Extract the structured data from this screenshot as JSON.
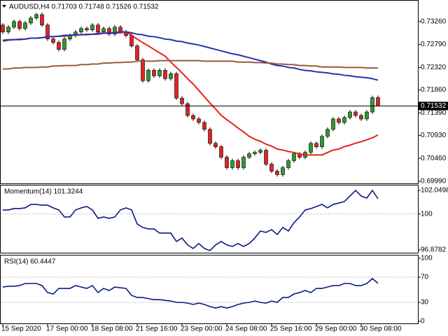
{
  "chart_data": [
    {
      "type": "candlestick",
      "title": "AUDUSD,H4 0.71703 0.71748 0.71526 0.71532",
      "categories": [
        "15 Sep 2020",
        null,
        null,
        null,
        null,
        null,
        null,
        null,
        "17 Sep 00:00",
        null,
        null,
        null,
        null,
        null,
        null,
        null,
        "18 Sep 08:00",
        null,
        null,
        null,
        null,
        null,
        null,
        null,
        "21 Sep 16:00",
        null,
        null,
        null,
        null,
        null,
        null,
        null,
        "23 Sep 00:00",
        null,
        null,
        null,
        null,
        null,
        null,
        null,
        "24 Sep 08:00",
        null,
        null,
        null,
        null,
        null,
        null,
        null,
        "25 Sep 16:00",
        null,
        null,
        null,
        null,
        null,
        null,
        null,
        "29 Sep 00:00",
        null,
        null,
        null,
        null,
        null,
        null,
        null,
        "30 Sep 08:00",
        null,
        null,
        null
      ],
      "open": [
        0.73189,
        0.73046,
        0.73146,
        0.7326,
        0.73117,
        0.73231,
        0.73331,
        0.73402,
        0.73189,
        0.72904,
        0.72833,
        0.7269,
        0.72904,
        0.72975,
        0.73046,
        0.73117,
        0.73089,
        0.73189,
        0.73046,
        0.73117,
        0.73004,
        0.73146,
        0.73046,
        0.72975,
        0.72761,
        0.72477,
        0.72049,
        0.72263,
        0.72149,
        0.72263,
        0.72092,
        0.72192,
        0.71693,
        0.71579,
        0.71337,
        0.71266,
        0.71195,
        0.71053,
        0.70767,
        0.70697,
        0.70483,
        0.70269,
        0.70412,
        0.70269,
        0.70483,
        0.70554,
        0.70583,
        0.70625,
        0.70341,
        0.70198,
        0.70127,
        0.70269,
        0.70412,
        0.70554,
        0.70483,
        0.70583,
        0.70767,
        0.70697,
        0.7091,
        0.71053,
        0.71266,
        0.71195,
        0.71295,
        0.71409,
        0.71337,
        0.71266,
        0.71409,
        0.71703
      ],
      "high": [
        0.73229,
        0.73186,
        0.733,
        0.733,
        0.73271,
        0.73371,
        0.73442,
        0.73442,
        0.73229,
        0.72944,
        0.72873,
        0.72944,
        0.73015,
        0.73086,
        0.73157,
        0.73157,
        0.73229,
        0.73229,
        0.73157,
        0.73157,
        0.73186,
        0.73186,
        0.73086,
        0.73015,
        0.72801,
        0.72517,
        0.72303,
        0.72303,
        0.72303,
        0.72303,
        0.72232,
        0.72232,
        0.71733,
        0.71619,
        0.71377,
        0.71306,
        0.71235,
        0.71093,
        0.70807,
        0.70737,
        0.70523,
        0.70452,
        0.70452,
        0.70523,
        0.70594,
        0.70623,
        0.70665,
        0.70665,
        0.70381,
        0.70238,
        0.70309,
        0.70452,
        0.70594,
        0.70594,
        0.70623,
        0.70807,
        0.70807,
        0.7095,
        0.71093,
        0.71306,
        0.71306,
        0.71335,
        0.71449,
        0.71449,
        0.71377,
        0.71449,
        0.71743,
        0.71748
      ],
      "low": [
        0.73006,
        0.73006,
        0.73106,
        0.73077,
        0.73077,
        0.73191,
        0.73291,
        0.73149,
        0.72864,
        0.72793,
        0.7265,
        0.7265,
        0.72864,
        0.72935,
        0.73006,
        0.73049,
        0.73049,
        0.73006,
        0.73006,
        0.72964,
        0.72964,
        0.73006,
        0.72935,
        0.72721,
        0.72437,
        0.72009,
        0.72009,
        0.72109,
        0.72109,
        0.72052,
        0.72052,
        0.71653,
        0.71539,
        0.71297,
        0.71226,
        0.71155,
        0.71013,
        0.70727,
        0.70657,
        0.70443,
        0.70229,
        0.70229,
        0.70229,
        0.70229,
        0.70443,
        0.70514,
        0.70543,
        0.70301,
        0.70158,
        0.70087,
        0.70087,
        0.70229,
        0.70372,
        0.70443,
        0.70443,
        0.70543,
        0.70657,
        0.70657,
        0.7087,
        0.71013,
        0.71155,
        0.71155,
        0.71255,
        0.71297,
        0.71226,
        0.71226,
        0.71369,
        0.71526
      ],
      "close": [
        0.73046,
        0.73146,
        0.7326,
        0.73117,
        0.73231,
        0.73331,
        0.73402,
        0.73189,
        0.72904,
        0.72833,
        0.7269,
        0.72904,
        0.72975,
        0.73046,
        0.73117,
        0.73089,
        0.73189,
        0.73046,
        0.73117,
        0.73004,
        0.73146,
        0.73046,
        0.72975,
        0.72761,
        0.72477,
        0.72049,
        0.72263,
        0.72149,
        0.72263,
        0.72092,
        0.72192,
        0.71693,
        0.71579,
        0.71337,
        0.71266,
        0.71195,
        0.71053,
        0.70767,
        0.70697,
        0.70483,
        0.70269,
        0.70412,
        0.70269,
        0.70483,
        0.70554,
        0.70583,
        0.70625,
        0.70341,
        0.70198,
        0.70127,
        0.70269,
        0.70412,
        0.70554,
        0.70483,
        0.70583,
        0.70767,
        0.70697,
        0.7091,
        0.71053,
        0.71266,
        0.71195,
        0.71295,
        0.71409,
        0.71337,
        0.71266,
        0.71409,
        0.71703,
        0.71532
      ],
      "up_color": "#2e9a2e",
      "down_color": "#e02424",
      "lines": [
        {
          "color": "#e8201c",
          "values": [
            0.7288,
            0.7289,
            0.7289,
            0.729,
            0.729,
            0.7292,
            0.7292,
            0.7293,
            0.7295,
            0.7295,
            0.7296,
            0.7296,
            0.7298,
            0.7298,
            0.7299,
            0.7299,
            0.73,
            0.73,
            0.7302,
            0.7302,
            0.7303,
            0.7303,
            0.7305,
            0.7298,
            0.729,
            0.7283,
            0.7276,
            0.7269,
            0.7262,
            0.7255,
            0.7243,
            0.7232,
            0.7221,
            0.7209,
            0.7198,
            0.7185,
            0.7172,
            0.7159,
            0.7147,
            0.7134,
            0.7125,
            0.7117,
            0.7108,
            0.71,
            0.7091,
            0.7085,
            0.7081,
            0.7075,
            0.7071,
            0.7065,
            0.7063,
            0.706,
            0.7058,
            0.7055,
            0.7053,
            0.7053,
            0.7053,
            0.7053,
            0.7058,
            0.7063,
            0.7065,
            0.707,
            0.7073,
            0.7077,
            0.708,
            0.7084,
            0.7088,
            0.7094
          ]
        },
        {
          "color": "#2434b0",
          "values": [
            0.7286,
            0.7288,
            0.7289,
            0.7289,
            0.729,
            0.7292,
            0.7292,
            0.7293,
            0.7295,
            0.7295,
            0.7296,
            0.7298,
            0.7298,
            0.7299,
            0.7299,
            0.73,
            0.73,
            0.7302,
            0.7302,
            0.7303,
            0.7303,
            0.7305,
            0.7305,
            0.7303,
            0.73,
            0.7299,
            0.7296,
            0.7295,
            0.7293,
            0.729,
            0.7289,
            0.7286,
            0.7285,
            0.7282,
            0.728,
            0.7278,
            0.7275,
            0.7272,
            0.7269,
            0.7266,
            0.7263,
            0.726,
            0.7258,
            0.7255,
            0.7252,
            0.7249,
            0.7246,
            0.7243,
            0.7239,
            0.7236,
            0.7235,
            0.7232,
            0.7231,
            0.7228,
            0.7226,
            0.7225,
            0.7223,
            0.7222,
            0.7221,
            0.7219,
            0.7218,
            0.7216,
            0.7215,
            0.7213,
            0.7212,
            0.7211,
            0.7209,
            0.7206
          ]
        },
        {
          "color": "#9b5b3c",
          "values": [
            0.7229,
            0.7229,
            0.7231,
            0.7231,
            0.7232,
            0.7232,
            0.7232,
            0.7233,
            0.7233,
            0.7235,
            0.7235,
            0.7236,
            0.7236,
            0.7236,
            0.7238,
            0.7238,
            0.7239,
            0.7239,
            0.7241,
            0.7241,
            0.7242,
            0.7242,
            0.7243,
            0.7243,
            0.7245,
            0.7245,
            0.7245,
            0.7245,
            0.7246,
            0.7246,
            0.7246,
            0.7246,
            0.7246,
            0.7246,
            0.7246,
            0.7246,
            0.7245,
            0.7245,
            0.7245,
            0.7245,
            0.7245,
            0.7245,
            0.7243,
            0.7243,
            0.7243,
            0.7242,
            0.7242,
            0.7241,
            0.7241,
            0.7239,
            0.7239,
            0.7238,
            0.7238,
            0.7236,
            0.7236,
            0.7235,
            0.7235,
            0.7233,
            0.7233,
            0.7233,
            0.7233,
            0.7232,
            0.7232,
            0.7232,
            0.7232,
            0.7231,
            0.7231,
            0.7231
          ]
        }
      ],
      "ylim": [
        0.69947,
        0.73687
      ],
      "yticks": [
        {
          "value": 0.7326,
          "label": "0.73260"
        },
        {
          "value": 0.7279,
          "label": "0.72790"
        },
        {
          "value": 0.7232,
          "label": "0.72320"
        },
        {
          "value": 0.7186,
          "label": "0.71860"
        },
        {
          "value": 0.7139,
          "label": "0.71390"
        },
        {
          "value": 0.7093,
          "label": "0.70930"
        },
        {
          "value": 0.7046,
          "label": "0.70460"
        },
        {
          "value": 0.6999,
          "label": "0.69990"
        }
      ],
      "last_price": 0.71532
    },
    {
      "type": "line",
      "title": "Momentum(14) 101.3244",
      "color": "#0a1a80",
      "values": [
        100.35,
        100.35,
        100.47,
        100.47,
        100.53,
        100.83,
        100.83,
        100.77,
        100.77,
        100.53,
        100.35,
        99.74,
        99.74,
        100.35,
        100.53,
        100.65,
        100.35,
        99.62,
        99.74,
        99.62,
        99.74,
        100.35,
        100.53,
        100.35,
        99.13,
        98.83,
        98.7,
        98.7,
        98.34,
        98.34,
        98.34,
        97.61,
        97.91,
        97.31,
        97.0,
        97.43,
        97.0,
        96.82,
        97.31,
        97.61,
        97.31,
        97.18,
        97.43,
        97.18,
        97.43,
        97.91,
        98.52,
        98.4,
        98.64,
        98.22,
        98.83,
        98.52,
        99.25,
        99.74,
        100.35,
        100.47,
        100.65,
        100.83,
        100.53,
        100.83,
        100.95,
        101.08,
        101.56,
        102.05,
        101.56,
        101.38,
        102.05,
        101.3244
      ],
      "ylim": [
        96.635,
        102.475
      ],
      "yticks": [
        102.0498,
        100,
        96.8782
      ],
      "levels": [
        100
      ]
    },
    {
      "type": "line",
      "title": "RSI(14) 60.4447",
      "color": "#0a1a80",
      "values": [
        54.4,
        55.6,
        55.6,
        56.7,
        60.0,
        60.0,
        60.0,
        56.7,
        45.6,
        43.3,
        52.2,
        52.2,
        52.2,
        56.7,
        54.4,
        52.2,
        56.7,
        45.6,
        52.2,
        48.9,
        54.4,
        53.3,
        52.2,
        41.1,
        37.8,
        37.8,
        36.0,
        34.4,
        34.4,
        33.3,
        32.2,
        30.0,
        30.0,
        28.9,
        26.7,
        28.9,
        26.7,
        23.3,
        21.1,
        23.3,
        21.1,
        23.3,
        26.7,
        28.9,
        30.0,
        32.2,
        30.0,
        28.9,
        32.2,
        30.0,
        37.8,
        37.8,
        43.3,
        45.6,
        48.9,
        45.6,
        52.2,
        52.2,
        54.4,
        56.7,
        56.7,
        60.0,
        60.0,
        56.7,
        56.7,
        60.0,
        67.8,
        60.4447
      ],
      "ylim": [
        -3.3,
        104.4
      ],
      "yticks": [
        100,
        70,
        30,
        0
      ],
      "levels": [
        70,
        30
      ]
    }
  ]
}
